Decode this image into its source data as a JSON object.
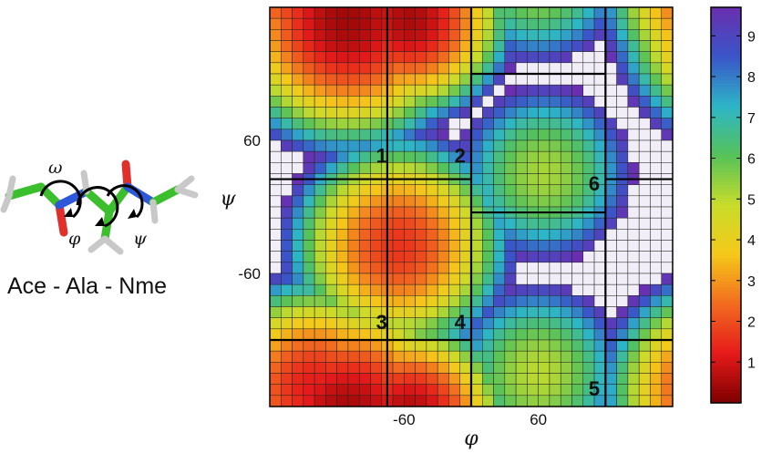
{
  "molecule": {
    "name": "Ace - Ala - Nme",
    "angle_labels": [
      "ω",
      "φ",
      "ψ"
    ]
  },
  "chart_data": {
    "type": "heatmap",
    "title": "",
    "xlabel": "φ",
    "ylabel": "ψ",
    "xlim": [
      -180,
      180
    ],
    "ylim": [
      -180,
      180
    ],
    "xticks": [
      -60,
      60
    ],
    "xtick_labels": [
      "-60",
      "60"
    ],
    "yticks": [
      -60,
      60
    ],
    "ytick_labels": [
      "-60",
      "60"
    ],
    "grid": "36x36 cells",
    "colorbar": {
      "ticks": [
        1,
        2,
        3,
        4,
        5,
        6,
        7,
        8,
        9
      ],
      "range": [
        0,
        9.7
      ],
      "values_above_max": "white",
      "colors": [
        "#7f0000",
        "#e61a1a",
        "#f26b1f",
        "#f5c819",
        "#c8dc2a",
        "#56c25a",
        "#2db5c8",
        "#3a55c8",
        "#6a2fb0",
        "#f2eef8"
      ]
    },
    "basins": [
      {
        "phi": -110,
        "psi": 170,
        "value": 0.4,
        "size": 45
      },
      {
        "phi": -55,
        "psi": 170,
        "value": 0.5,
        "size": 35
      },
      {
        "phi": -65,
        "psi": -35,
        "value": 1.6,
        "size": 40
      },
      {
        "phi": -140,
        "psi": -165,
        "value": 1.2,
        "size": 40
      },
      {
        "phi": 65,
        "psi": 30,
        "value": 5.2,
        "size": 40
      },
      {
        "phi": 60,
        "psi": -150,
        "value": 5.0,
        "size": 40
      }
    ],
    "regions": [
      {
        "label": "1",
        "phi": -80,
        "psi": 40
      },
      {
        "label": "2",
        "phi": -10,
        "psi": 40
      },
      {
        "label": "3",
        "phi": -80,
        "psi": -110
      },
      {
        "label": "4",
        "phi": -10,
        "psi": -110
      },
      {
        "label": "5",
        "phi": 110,
        "psi": -170
      },
      {
        "label": "6",
        "phi": 110,
        "psi": 15
      }
    ],
    "boundaries": [
      {
        "orient": "v",
        "at": -75,
        "from": -180,
        "to": 180
      },
      {
        "orient": "v",
        "at": 0,
        "from": -180,
        "to": 180
      },
      {
        "orient": "v",
        "at": 120,
        "from": -180,
        "to": 180
      },
      {
        "orient": "h",
        "at": 25,
        "from": -180,
        "to": 0
      },
      {
        "orient": "h",
        "at": -120,
        "from": -180,
        "to": 0
      },
      {
        "orient": "h",
        "at": 120,
        "from": 0,
        "to": 120
      },
      {
        "orient": "h",
        "at": -5,
        "from": 0,
        "to": 120
      },
      {
        "orient": "h",
        "at": 25,
        "from": 120,
        "to": 180
      },
      {
        "orient": "h",
        "at": -120,
        "from": 120,
        "to": 180
      }
    ]
  }
}
